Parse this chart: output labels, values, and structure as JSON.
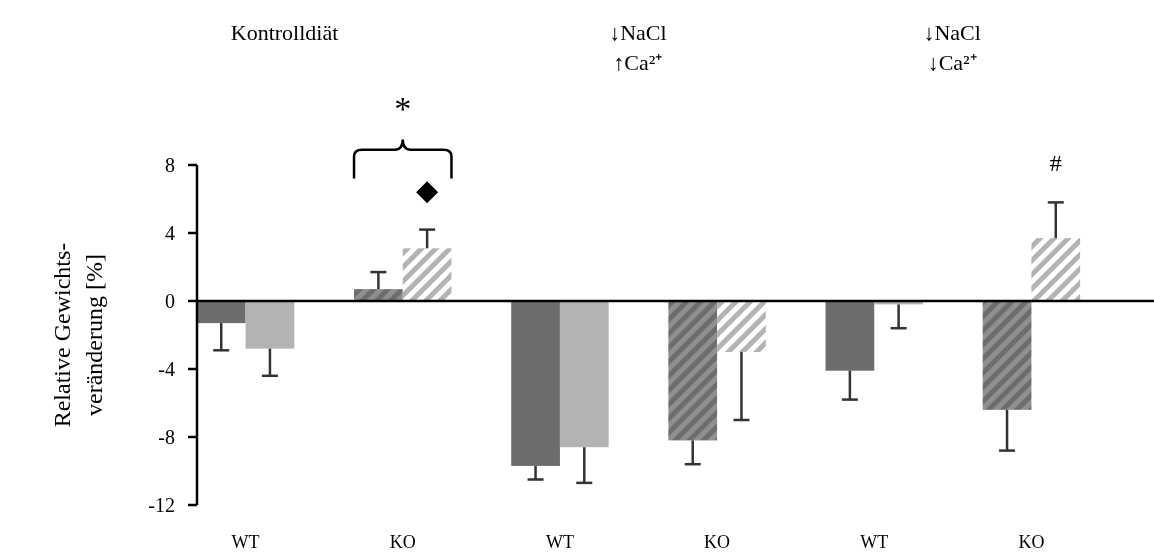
{
  "chart_data": {
    "type": "bar",
    "ylabel": "Relative Gewichts-\nveränderung  [%]",
    "categories": [
      "WT",
      "KO",
      "WT",
      "KO",
      "WT",
      "KO"
    ],
    "series": [
      {
        "color": "#6d6d6d",
        "values": [
          -1.3,
          0.7,
          -9.7,
          -8.2,
          -4.1,
          -6.4
        ],
        "errors": [
          [
            -2.9,
            -1.3
          ],
          [
            0.7,
            1.7
          ],
          [
            -10.5,
            -9.7
          ],
          [
            -9.6,
            -8.2
          ],
          [
            -5.8,
            -4.1
          ],
          [
            -8.8,
            -6.4
          ]
        ]
      },
      {
        "color": "#b3b3b3",
        "values": [
          -2.8,
          3.1,
          -8.6,
          -3.0,
          -0.2,
          3.7
        ],
        "errors": [
          [
            -4.4,
            -2.8
          ],
          [
            3.1,
            4.2
          ],
          [
            -10.7,
            -8.6
          ],
          [
            -7.0,
            -3.0
          ],
          [
            -1.6,
            -0.2
          ],
          [
            3.7,
            5.8
          ]
        ]
      }
    ],
    "ylim": [
      -12,
      8
    ],
    "yticks": [
      -12,
      -8,
      -4,
      0,
      4,
      8
    ],
    "annotations": [
      "Kontrolldiät",
      "↓NaCl\n↑Ca²⁺",
      "↓NaCl\n↓Ca²⁺",
      "*",
      "#"
    ]
  }
}
